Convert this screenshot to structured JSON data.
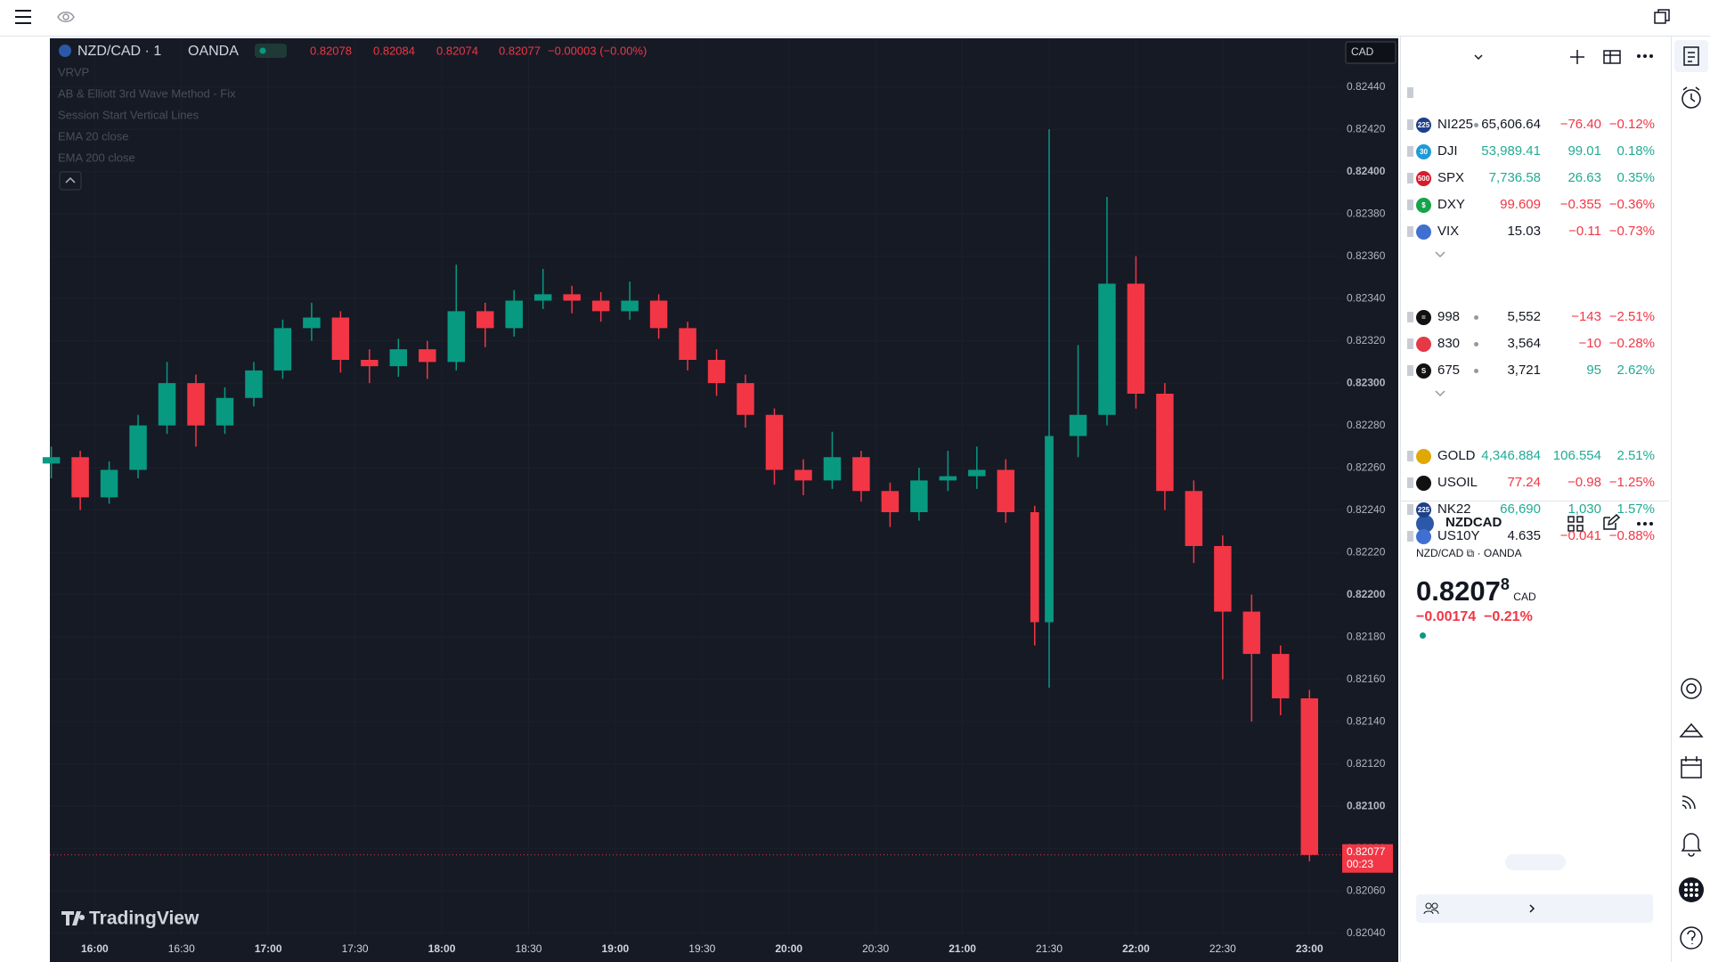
{
  "chart_header": {
    "symbol": "NZD/CAD · 1",
    "exchange": "OANDA",
    "open": "0.82078",
    "high": "0.82084",
    "low": "0.82074",
    "close": "0.82077",
    "change": "−0.00003 (−0.00%)"
  },
  "indicators": [
    "VRVP",
    "AB & Elliott 3rd Wave Method - Fix",
    "Session Start Vertical Lines",
    "EMA 20 close",
    "EMA 200 close"
  ],
  "currency": "CAD",
  "watermark": "TradingView",
  "chart_data": {
    "type": "candlestick",
    "up_color": "#089981",
    "down_color": "#f23645",
    "grid": true,
    "countdown": "00:23",
    "x": [
      945,
      955,
      965,
      975,
      985,
      995,
      1005,
      1015,
      1025,
      1035,
      1045,
      1055,
      1065,
      1075,
      1085,
      1095,
      1105,
      1115,
      1125,
      1135,
      1145,
      1155,
      1165,
      1175,
      1185,
      1195,
      1205,
      1215,
      1225,
      1235,
      1245,
      1255,
      1265,
      1275,
      1285,
      1290,
      1300,
      1310,
      1320,
      1330,
      1340,
      1350,
      1360,
      1370,
      1380
    ],
    "open": [
      0.82262,
      0.82265,
      0.82246,
      0.82259,
      0.8228,
      0.823,
      0.8228,
      0.82293,
      0.82306,
      0.82326,
      0.82331,
      0.82311,
      0.82308,
      0.82316,
      0.8231,
      0.82334,
      0.82326,
      0.82339,
      0.82342,
      0.82339,
      0.82334,
      0.82339,
      0.82326,
      0.82311,
      0.823,
      0.82285,
      0.82259,
      0.82254,
      0.82265,
      0.82249,
      0.82239,
      0.82254,
      0.82256,
      0.82259,
      0.82239,
      0.82187,
      0.82275,
      0.82285,
      0.82347,
      0.82295,
      0.82249,
      0.82223,
      0.82192,
      0.82172,
      0.82151
    ],
    "high": [
      0.8227,
      0.82268,
      0.82263,
      0.82285,
      0.8231,
      0.82304,
      0.82298,
      0.8231,
      0.8233,
      0.82338,
      0.82334,
      0.82316,
      0.82321,
      0.8232,
      0.82356,
      0.82338,
      0.82344,
      0.82354,
      0.82346,
      0.82343,
      0.82348,
      0.82342,
      0.82329,
      0.82316,
      0.82304,
      0.82288,
      0.82264,
      0.82277,
      0.82268,
      0.82253,
      0.8226,
      0.82268,
      0.8227,
      0.82264,
      0.82242,
      0.8242,
      0.82318,
      0.82388,
      0.8236,
      0.823,
      0.82254,
      0.82228,
      0.822,
      0.82176,
      0.82155
    ],
    "low": [
      0.82255,
      0.8224,
      0.82243,
      0.82255,
      0.82276,
      0.8227,
      0.82276,
      0.82289,
      0.82302,
      0.8232,
      0.82305,
      0.823,
      0.82303,
      0.82302,
      0.82306,
      0.82317,
      0.82322,
      0.82335,
      0.82333,
      0.82329,
      0.8233,
      0.82321,
      0.82306,
      0.82294,
      0.82279,
      0.82252,
      0.82247,
      0.8225,
      0.82244,
      0.82232,
      0.82235,
      0.82249,
      0.8225,
      0.82234,
      0.82176,
      0.82156,
      0.82265,
      0.8228,
      0.82288,
      0.8224,
      0.82215,
      0.8216,
      0.8214,
      0.82143,
      0.82074
    ],
    "close": [
      0.82265,
      0.82246,
      0.82259,
      0.8228,
      0.823,
      0.8228,
      0.82293,
      0.82306,
      0.82326,
      0.82331,
      0.82311,
      0.82308,
      0.82316,
      0.8231,
      0.82334,
      0.82326,
      0.82339,
      0.82342,
      0.82339,
      0.82334,
      0.82339,
      0.82326,
      0.82311,
      0.823,
      0.82285,
      0.82259,
      0.82254,
      0.82265,
      0.82249,
      0.82239,
      0.82254,
      0.82256,
      0.82259,
      0.82239,
      0.82187,
      0.82275,
      0.82285,
      0.82347,
      0.82295,
      0.82249,
      0.82223,
      0.82192,
      0.82172,
      0.82151,
      0.82077
    ],
    "xlim": [
      944.5,
      1391
    ],
    "xticks": [
      {
        "value": 960,
        "label": "16:00"
      },
      {
        "value": 990,
        "label": "16:30"
      },
      {
        "value": 1020,
        "label": "17:00"
      },
      {
        "value": 1050,
        "label": "17:30"
      },
      {
        "value": 1080,
        "label": "18:00"
      },
      {
        "value": 1110,
        "label": "18:30"
      },
      {
        "value": 1140,
        "label": "19:00"
      },
      {
        "value": 1170,
        "label": "19:30"
      },
      {
        "value": 1200,
        "label": "20:00"
      },
      {
        "value": 1230,
        "label": "20:30"
      },
      {
        "value": 1260,
        "label": "21:00"
      },
      {
        "value": 1290,
        "label": "21:30"
      },
      {
        "value": 1320,
        "label": "22:00"
      },
      {
        "value": 1350,
        "label": "22:30"
      },
      {
        "value": 1380,
        "label": "23:00"
      }
    ],
    "ylim": [
      0.82039,
      0.82463
    ],
    "yticks": [
      {
        "value": 0.8204,
        "label": "0.82040"
      },
      {
        "value": 0.8206,
        "label": "0.82060"
      },
      {
        "value": 0.8208,
        "label": "0.82080"
      },
      {
        "value": 0.821,
        "label": "0.82100"
      },
      {
        "value": 0.8212,
        "label": "0.82120"
      },
      {
        "value": 0.8214,
        "label": "0.82140"
      },
      {
        "value": 0.8216,
        "label": "0.82160"
      },
      {
        "value": 0.8218,
        "label": "0.82180"
      },
      {
        "value": 0.822,
        "label": "0.82200"
      },
      {
        "value": 0.8222,
        "label": "0.82220"
      },
      {
        "value": 0.8224,
        "label": "0.82240"
      },
      {
        "value": 0.8226,
        "label": "0.82260"
      },
      {
        "value": 0.8228,
        "label": "0.82280"
      },
      {
        "value": 0.823,
        "label": "0.82300"
      },
      {
        "value": 0.8232,
        "label": "0.82320"
      },
      {
        "value": 0.8234,
        "label": "0.82340"
      },
      {
        "value": 0.8236,
        "label": "0.82360"
      },
      {
        "value": 0.8238,
        "label": "0.82380"
      },
      {
        "value": 0.824,
        "label": "0.82400"
      },
      {
        "value": 0.8242,
        "label": "0.82420"
      },
      {
        "value": 0.8244,
        "label": "0.82440"
      }
    ]
  },
  "watchlist": {
    "groups": [
      [
        {
          "badge": "225",
          "badge_color": "#1e3f8a",
          "symbol": "NI225",
          "dot": true,
          "last": "65,606.64",
          "change": "−76.40",
          "change_pct": "−0.12%",
          "last_color": "#131722",
          "change_color": "#f23645"
        },
        {
          "badge": "30",
          "badge_color": "#1e9bd7",
          "symbol": "DJI",
          "dot": false,
          "last": "53,989.41",
          "change": "99.01",
          "change_pct": "0.18%",
          "last_color": "#22ab94",
          "change_color": "#22ab94"
        },
        {
          "badge": "500",
          "badge_color": "#d81b2c",
          "symbol": "SPX",
          "dot": false,
          "last": "7,736.58",
          "change": "26.63",
          "change_pct": "0.35%",
          "last_color": "#22ab94",
          "change_color": "#22ab94"
        },
        {
          "badge": "$",
          "badge_color": "#16a34a",
          "symbol": "DXY",
          "dot": false,
          "last": "99.609",
          "change": "−0.355",
          "change_pct": "−0.36%",
          "last_color": "#f23645",
          "change_color": "#f23645"
        },
        {
          "badge": "",
          "badge_color": "#3f6fd1",
          "symbol": "VIX",
          "dot": false,
          "last": "15.03",
          "change": "−0.11",
          "change_pct": "−0.73%",
          "last_color": "#131722",
          "change_color": "#f23645"
        }
      ],
      [
        {
          "badge": "=",
          "badge_color": "#111111",
          "symbol": "998",
          "dot": true,
          "last": "5,552",
          "change": "−143",
          "change_pct": "−2.51%",
          "last_color": "#131722",
          "change_color": "#f23645"
        },
        {
          "badge": "",
          "badge_color": "#e53945",
          "symbol": "830",
          "dot": true,
          "last": "3,564",
          "change": "−10",
          "change_pct": "−0.28%",
          "last_color": "#131722",
          "change_color": "#f23645"
        },
        {
          "badge": "S",
          "badge_color": "#111111",
          "symbol": "675",
          "dot": true,
          "last": "3,721",
          "change": "95",
          "change_pct": "2.62%",
          "last_color": "#131722",
          "change_color": "#22ab94"
        }
      ],
      [
        {
          "badge": "",
          "badge_color": "#e0a800",
          "symbol": "GOLD",
          "dot": false,
          "last": "4,346.884",
          "change": "106.554",
          "change_pct": "2.51%",
          "last_color": "#22ab94",
          "change_color": "#22ab94"
        },
        {
          "badge": "",
          "badge_color": "#111111",
          "symbol": "USOIL",
          "dot": false,
          "last": "77.24",
          "change": "−0.98",
          "change_pct": "−1.25%",
          "last_color": "#f23645",
          "change_color": "#f23645"
        },
        {
          "badge": "225",
          "badge_color": "#1e3f8a",
          "symbol": "NK22",
          "dot": false,
          "last": "66,690",
          "change": "1,030",
          "change_pct": "1.57%",
          "last_color": "#22ab94",
          "change_color": "#22ab94"
        },
        {
          "badge": "",
          "badge_color": "#3f6fd1",
          "symbol": "US10Y",
          "dot": false,
          "last": "4.635",
          "change": "−0.041",
          "change_pct": "−0.88%",
          "last_color": "#131722",
          "change_color": "#f23645"
        }
      ]
    ]
  },
  "details": {
    "symbol": "NZDCAD",
    "pair": "NZD/CAD",
    "exchange": "OANDA",
    "price": "0.8207",
    "price_tail": "8",
    "currency": "CAD",
    "change": "−0.00174",
    "change_pct": "−0.21%"
  }
}
